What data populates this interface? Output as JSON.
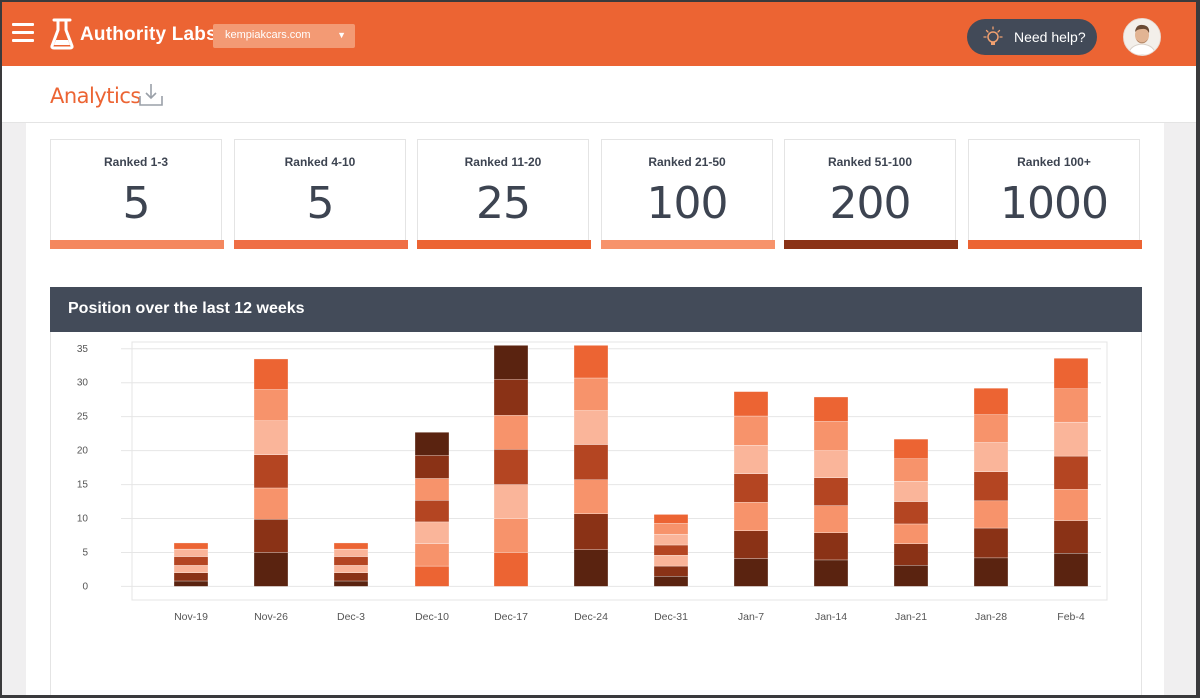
{
  "header": {
    "app_name": "Authority Labs",
    "site_selector": {
      "value": "kempiakcars.com"
    },
    "help_label": "Need help?"
  },
  "page": {
    "title": "Analytics"
  },
  "stats": [
    {
      "label": "Ranked 1-3",
      "value": "5",
      "color": "#f4875e"
    },
    {
      "label": "Ranked 4-10",
      "value": "5",
      "color": "#ef6e45"
    },
    {
      "label": "Ranked 11-20",
      "value": "25",
      "color": "#ec6433"
    },
    {
      "label": "Ranked 21-50",
      "value": "100",
      "color": "#f7936b"
    },
    {
      "label": "Ranked 51-100",
      "value": "200",
      "color": "#8a3216"
    },
    {
      "label": "Ranked 100+",
      "value": "1000",
      "color": "#ec6433"
    }
  ],
  "chart_panel": {
    "title": "Position over the last 12 weeks"
  },
  "chart_data": {
    "type": "bar",
    "stacked": true,
    "categories": [
      "Nov-19",
      "Nov-26",
      "Dec-3",
      "Dec-10",
      "Dec-17",
      "Dec-24",
      "Dec-31",
      "Jan-7",
      "Jan-14",
      "Jan-21",
      "Jan-28",
      "Feb-4"
    ],
    "y_ticks": [
      0,
      5,
      10,
      15,
      20,
      25,
      30,
      35
    ],
    "ylim": [
      -2,
      36
    ],
    "grid": true,
    "segment_colors": {
      "dark": "#5a2310",
      "darkred": "#8a3216",
      "red": "#b44522",
      "orange": "#ec6433",
      "light": "#f7936b",
      "pale": "#fab59a"
    },
    "stacks": [
      {
        "category": "Nov-19",
        "segments": [
          {
            "v": 0.8,
            "c": "dark"
          },
          {
            "v": 1.2,
            "c": "darkred"
          },
          {
            "v": 1.1,
            "c": "pale"
          },
          {
            "v": 1.3,
            "c": "red"
          },
          {
            "v": 1.1,
            "c": "pale"
          },
          {
            "v": 0.9,
            "c": "orange"
          }
        ]
      },
      {
        "category": "Nov-26",
        "segments": [
          {
            "v": 5.0,
            "c": "dark"
          },
          {
            "v": 4.9,
            "c": "darkred"
          },
          {
            "v": 4.6,
            "c": "light"
          },
          {
            "v": 4.9,
            "c": "red"
          },
          {
            "v": 5.0,
            "c": "pale"
          },
          {
            "v": 4.6,
            "c": "light"
          },
          {
            "v": 4.5,
            "c": "orange"
          }
        ]
      },
      {
        "category": "Dec-3",
        "segments": [
          {
            "v": 0.8,
            "c": "dark"
          },
          {
            "v": 1.2,
            "c": "darkred"
          },
          {
            "v": 1.1,
            "c": "pale"
          },
          {
            "v": 1.3,
            "c": "red"
          },
          {
            "v": 1.1,
            "c": "pale"
          },
          {
            "v": 0.9,
            "c": "orange"
          }
        ]
      },
      {
        "category": "Dec-10",
        "segments": [
          {
            "v": 3.0,
            "c": "orange"
          },
          {
            "v": 3.3,
            "c": "light"
          },
          {
            "v": 3.2,
            "c": "pale"
          },
          {
            "v": 3.2,
            "c": "red"
          },
          {
            "v": 3.2,
            "c": "light"
          },
          {
            "v": 3.4,
            "c": "darkred"
          },
          {
            "v": 3.4,
            "c": "dark"
          }
        ]
      },
      {
        "category": "Dec-17",
        "segments": [
          {
            "v": 5.0,
            "c": "orange"
          },
          {
            "v": 5.0,
            "c": "light"
          },
          {
            "v": 5.0,
            "c": "pale"
          },
          {
            "v": 5.2,
            "c": "red"
          },
          {
            "v": 5.0,
            "c": "light"
          },
          {
            "v": 5.3,
            "c": "darkred"
          },
          {
            "v": 5.0,
            "c": "dark"
          }
        ]
      },
      {
        "category": "Dec-24",
        "segments": [
          {
            "v": 5.4,
            "c": "dark"
          },
          {
            "v": 5.3,
            "c": "darkred"
          },
          {
            "v": 5.0,
            "c": "light"
          },
          {
            "v": 5.2,
            "c": "red"
          },
          {
            "v": 5.0,
            "c": "pale"
          },
          {
            "v": 4.8,
            "c": "light"
          },
          {
            "v": 4.8,
            "c": "orange"
          }
        ]
      },
      {
        "category": "Dec-31",
        "segments": [
          {
            "v": 1.5,
            "c": "dark"
          },
          {
            "v": 1.5,
            "c": "darkred"
          },
          {
            "v": 1.6,
            "c": "pale"
          },
          {
            "v": 1.5,
            "c": "red"
          },
          {
            "v": 1.6,
            "c": "pale"
          },
          {
            "v": 1.6,
            "c": "light"
          },
          {
            "v": 1.3,
            "c": "orange"
          }
        ]
      },
      {
        "category": "Jan-7",
        "segments": [
          {
            "v": 4.1,
            "c": "dark"
          },
          {
            "v": 4.1,
            "c": "darkred"
          },
          {
            "v": 4.2,
            "c": "light"
          },
          {
            "v": 4.2,
            "c": "red"
          },
          {
            "v": 4.2,
            "c": "pale"
          },
          {
            "v": 4.3,
            "c": "light"
          },
          {
            "v": 3.6,
            "c": "orange"
          }
        ]
      },
      {
        "category": "Jan-14",
        "segments": [
          {
            "v": 3.9,
            "c": "dark"
          },
          {
            "v": 4.0,
            "c": "darkred"
          },
          {
            "v": 4.0,
            "c": "light"
          },
          {
            "v": 4.1,
            "c": "red"
          },
          {
            "v": 4.0,
            "c": "pale"
          },
          {
            "v": 4.3,
            "c": "light"
          },
          {
            "v": 3.6,
            "c": "orange"
          }
        ]
      },
      {
        "category": "Jan-21",
        "segments": [
          {
            "v": 3.1,
            "c": "dark"
          },
          {
            "v": 3.2,
            "c": "darkred"
          },
          {
            "v": 2.9,
            "c": "light"
          },
          {
            "v": 3.3,
            "c": "red"
          },
          {
            "v": 3.0,
            "c": "pale"
          },
          {
            "v": 3.3,
            "c": "light"
          },
          {
            "v": 2.9,
            "c": "orange"
          }
        ]
      },
      {
        "category": "Jan-28",
        "segments": [
          {
            "v": 4.2,
            "c": "dark"
          },
          {
            "v": 4.4,
            "c": "darkred"
          },
          {
            "v": 4.0,
            "c": "light"
          },
          {
            "v": 4.3,
            "c": "red"
          },
          {
            "v": 4.3,
            "c": "pale"
          },
          {
            "v": 4.1,
            "c": "light"
          },
          {
            "v": 3.9,
            "c": "orange"
          }
        ]
      },
      {
        "category": "Feb-4",
        "segments": [
          {
            "v": 4.9,
            "c": "dark"
          },
          {
            "v": 4.8,
            "c": "darkred"
          },
          {
            "v": 4.6,
            "c": "light"
          },
          {
            "v": 4.9,
            "c": "red"
          },
          {
            "v": 5.0,
            "c": "pale"
          },
          {
            "v": 4.9,
            "c": "light"
          },
          {
            "v": 4.5,
            "c": "orange"
          }
        ]
      }
    ]
  }
}
